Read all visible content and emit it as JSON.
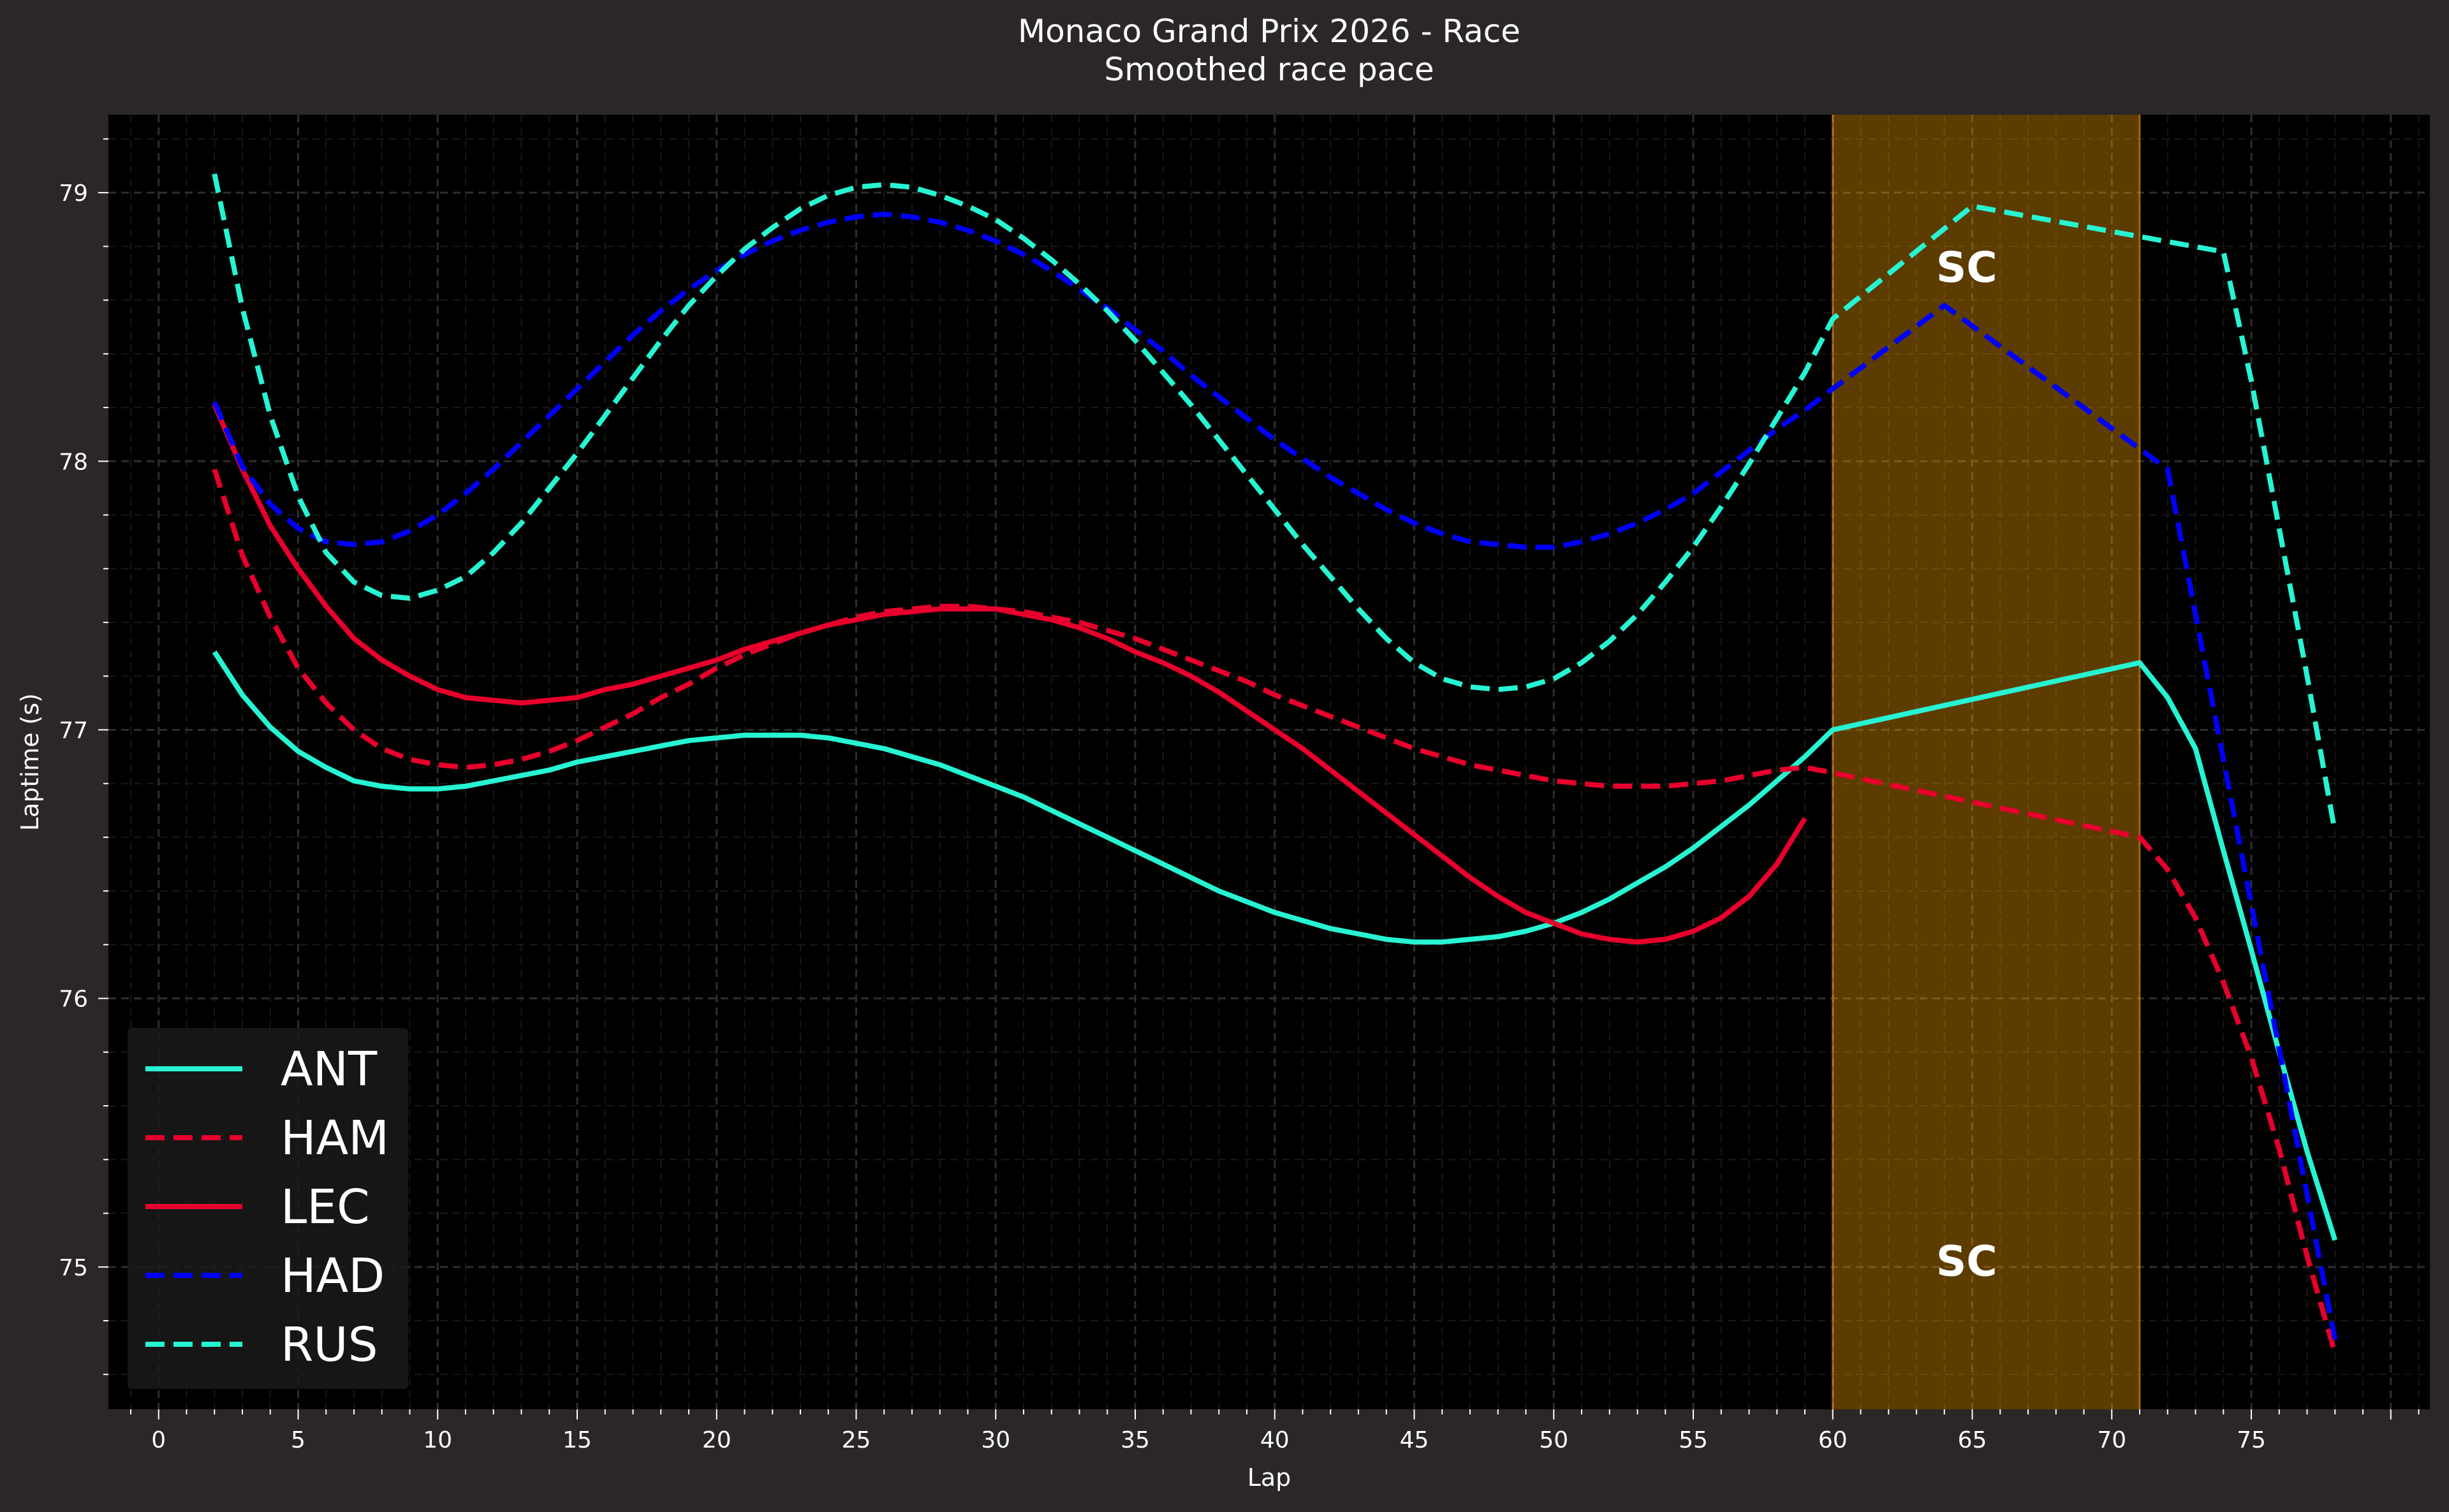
{
  "chart_data": {
    "type": "line",
    "title": "Monaco Grand Prix 2026 - Race",
    "subtitle": "Smoothed race pace",
    "xlabel": "Lap",
    "ylabel": "Laptime (s)",
    "xlim": [
      -1.8,
      81.4
    ],
    "ylim": [
      74.47,
      79.29
    ],
    "xticks": [
      0,
      5,
      10,
      15,
      20,
      25,
      30,
      35,
      40,
      45,
      50,
      55,
      60,
      65,
      70,
      75
    ],
    "yticks": [
      75,
      76,
      77,
      78,
      79
    ],
    "grid": true,
    "legend_position": "lower-left",
    "background": "#000000",
    "figure_background": "#2a2726",
    "highlight_region": {
      "label": "SC",
      "x_start": 60,
      "x_end": 71,
      "color": "#ffa500",
      "label_positions": [
        [
          64.8,
          78.72
        ],
        [
          64.8,
          75.02
        ]
      ]
    },
    "series": [
      {
        "name": "ANT",
        "color": "#27f4d2",
        "style": "solid",
        "x": [
          2,
          3,
          4,
          5,
          6,
          7,
          8,
          9,
          10,
          11,
          12,
          13,
          14,
          15,
          16,
          17,
          18,
          19,
          20,
          21,
          22,
          23,
          24,
          25,
          26,
          27,
          28,
          29,
          30,
          31,
          32,
          33,
          34,
          35,
          36,
          37,
          38,
          39,
          40,
          41,
          42,
          43,
          44,
          45,
          46,
          47,
          48,
          49,
          50,
          51,
          52,
          53,
          54,
          55,
          56,
          57,
          58,
          59,
          60,
          71,
          72,
          73,
          74,
          75,
          76,
          77,
          78
        ],
        "y": [
          77.29,
          77.13,
          77.01,
          76.92,
          76.86,
          76.81,
          76.79,
          76.78,
          76.78,
          76.79,
          76.81,
          76.83,
          76.85,
          76.88,
          76.9,
          76.92,
          76.94,
          76.96,
          76.97,
          76.98,
          76.98,
          76.98,
          76.97,
          76.95,
          76.93,
          76.9,
          76.87,
          76.83,
          76.79,
          76.75,
          76.7,
          76.65,
          76.6,
          76.55,
          76.5,
          76.45,
          76.4,
          76.36,
          76.32,
          76.29,
          76.26,
          76.24,
          76.22,
          76.21,
          76.21,
          76.22,
          76.23,
          76.25,
          76.28,
          76.32,
          76.37,
          76.43,
          76.49,
          76.56,
          76.64,
          76.72,
          76.81,
          76.9,
          77.0,
          77.25,
          77.12,
          76.93,
          76.55,
          76.18,
          75.8,
          75.43,
          75.1
        ]
      },
      {
        "name": "HAM",
        "color": "#e8002d",
        "style": "dashed",
        "x": [
          2,
          3,
          4,
          5,
          6,
          7,
          8,
          9,
          10,
          11,
          12,
          13,
          14,
          15,
          16,
          17,
          18,
          19,
          20,
          21,
          22,
          23,
          24,
          25,
          26,
          27,
          28,
          29,
          30,
          31,
          32,
          33,
          34,
          35,
          36,
          37,
          38,
          39,
          40,
          41,
          42,
          43,
          44,
          45,
          46,
          47,
          48,
          49,
          50,
          51,
          52,
          53,
          54,
          55,
          56,
          57,
          58,
          59,
          60,
          71,
          72,
          73,
          74,
          75,
          76,
          77,
          78
        ],
        "y": [
          77.97,
          77.65,
          77.42,
          77.23,
          77.1,
          77.0,
          76.93,
          76.89,
          76.87,
          76.86,
          76.87,
          76.89,
          76.92,
          76.96,
          77.01,
          77.06,
          77.12,
          77.17,
          77.23,
          77.28,
          77.32,
          77.36,
          77.39,
          77.42,
          77.44,
          77.45,
          77.46,
          77.46,
          77.45,
          77.44,
          77.42,
          77.4,
          77.37,
          77.34,
          77.3,
          77.26,
          77.22,
          77.18,
          77.13,
          77.09,
          77.05,
          77.01,
          76.97,
          76.93,
          76.9,
          76.87,
          76.85,
          76.83,
          76.81,
          76.8,
          76.79,
          76.79,
          76.79,
          76.8,
          76.81,
          76.83,
          76.85,
          76.86,
          76.84,
          76.6,
          76.48,
          76.3,
          76.06,
          75.78,
          75.44,
          75.04,
          74.68
        ]
      },
      {
        "name": "LEC",
        "color": "#e8002d",
        "style": "solid",
        "x": [
          2,
          3,
          4,
          5,
          6,
          7,
          8,
          9,
          10,
          11,
          12,
          13,
          14,
          15,
          16,
          17,
          18,
          19,
          20,
          21,
          22,
          23,
          24,
          25,
          26,
          27,
          28,
          29,
          30,
          31,
          32,
          33,
          34,
          35,
          36,
          37,
          38,
          39,
          40,
          41,
          42,
          43,
          44,
          45,
          46,
          47,
          48,
          49,
          50,
          51,
          52,
          53,
          54,
          55,
          56,
          57,
          58,
          59
        ],
        "y": [
          78.21,
          77.97,
          77.76,
          77.6,
          77.46,
          77.34,
          77.26,
          77.2,
          77.15,
          77.12,
          77.11,
          77.1,
          77.11,
          77.12,
          77.15,
          77.17,
          77.2,
          77.23,
          77.26,
          77.3,
          77.33,
          77.36,
          77.39,
          77.41,
          77.43,
          77.44,
          77.45,
          77.45,
          77.45,
          77.43,
          77.41,
          77.38,
          77.34,
          77.29,
          77.25,
          77.2,
          77.14,
          77.07,
          77.0,
          76.93,
          76.85,
          76.77,
          76.69,
          76.61,
          76.53,
          76.45,
          76.38,
          76.32,
          76.28,
          76.24,
          76.22,
          76.21,
          76.22,
          76.25,
          76.3,
          76.38,
          76.5,
          76.67
        ]
      },
      {
        "name": "HAD",
        "color": "#0000ff",
        "style": "dashed",
        "x": [
          2,
          3,
          4,
          5,
          6,
          7,
          8,
          9,
          10,
          11,
          12,
          13,
          14,
          15,
          16,
          17,
          18,
          19,
          20,
          21,
          22,
          23,
          24,
          25,
          26,
          27,
          28,
          29,
          30,
          31,
          32,
          33,
          34,
          35,
          36,
          37,
          38,
          39,
          40,
          41,
          42,
          43,
          44,
          45,
          46,
          47,
          48,
          49,
          50,
          51,
          52,
          53,
          54,
          55,
          56,
          57,
          58,
          59,
          60,
          64,
          72,
          78
        ],
        "y": [
          78.22,
          77.98,
          77.84,
          77.75,
          77.7,
          77.69,
          77.7,
          77.74,
          77.8,
          77.88,
          77.97,
          78.07,
          78.17,
          78.27,
          78.37,
          78.47,
          78.56,
          78.64,
          78.71,
          78.77,
          78.82,
          78.86,
          78.89,
          78.91,
          78.92,
          78.91,
          78.89,
          78.86,
          78.82,
          78.77,
          78.71,
          78.64,
          78.57,
          78.49,
          78.41,
          78.32,
          78.24,
          78.16,
          78.08,
          78.01,
          77.94,
          77.88,
          77.82,
          77.77,
          77.73,
          77.7,
          77.69,
          77.68,
          77.68,
          77.7,
          77.73,
          77.77,
          77.82,
          77.88,
          77.96,
          78.04,
          78.12,
          78.19,
          78.27,
          78.58,
          77.97,
          74.73
        ]
      },
      {
        "name": "RUS",
        "color": "#27f4d2",
        "style": "dashed",
        "x": [
          2,
          3,
          4,
          5,
          6,
          7,
          8,
          9,
          10,
          11,
          12,
          13,
          14,
          15,
          16,
          17,
          18,
          19,
          20,
          21,
          22,
          23,
          24,
          25,
          26,
          27,
          28,
          29,
          30,
          31,
          32,
          33,
          34,
          35,
          36,
          37,
          38,
          39,
          40,
          41,
          42,
          43,
          44,
          45,
          46,
          47,
          48,
          49,
          50,
          51,
          52,
          53,
          54,
          55,
          56,
          57,
          58,
          59,
          60,
          65,
          74,
          75,
          76,
          77,
          78
        ],
        "y": [
          79.07,
          78.57,
          78.17,
          77.87,
          77.66,
          77.55,
          77.5,
          77.49,
          77.52,
          77.57,
          77.66,
          77.77,
          77.9,
          78.03,
          78.17,
          78.31,
          78.45,
          78.58,
          78.69,
          78.79,
          78.87,
          78.94,
          78.99,
          79.02,
          79.03,
          79.02,
          78.99,
          78.95,
          78.9,
          78.83,
          78.75,
          78.66,
          78.56,
          78.45,
          78.33,
          78.21,
          78.08,
          77.95,
          77.82,
          77.69,
          77.57,
          77.45,
          77.34,
          77.25,
          77.19,
          77.16,
          77.15,
          77.16,
          77.19,
          77.25,
          77.33,
          77.43,
          77.55,
          77.68,
          77.83,
          77.99,
          78.16,
          78.33,
          78.53,
          78.95,
          78.78,
          78.3,
          77.75,
          77.2,
          76.62
        ]
      }
    ]
  }
}
